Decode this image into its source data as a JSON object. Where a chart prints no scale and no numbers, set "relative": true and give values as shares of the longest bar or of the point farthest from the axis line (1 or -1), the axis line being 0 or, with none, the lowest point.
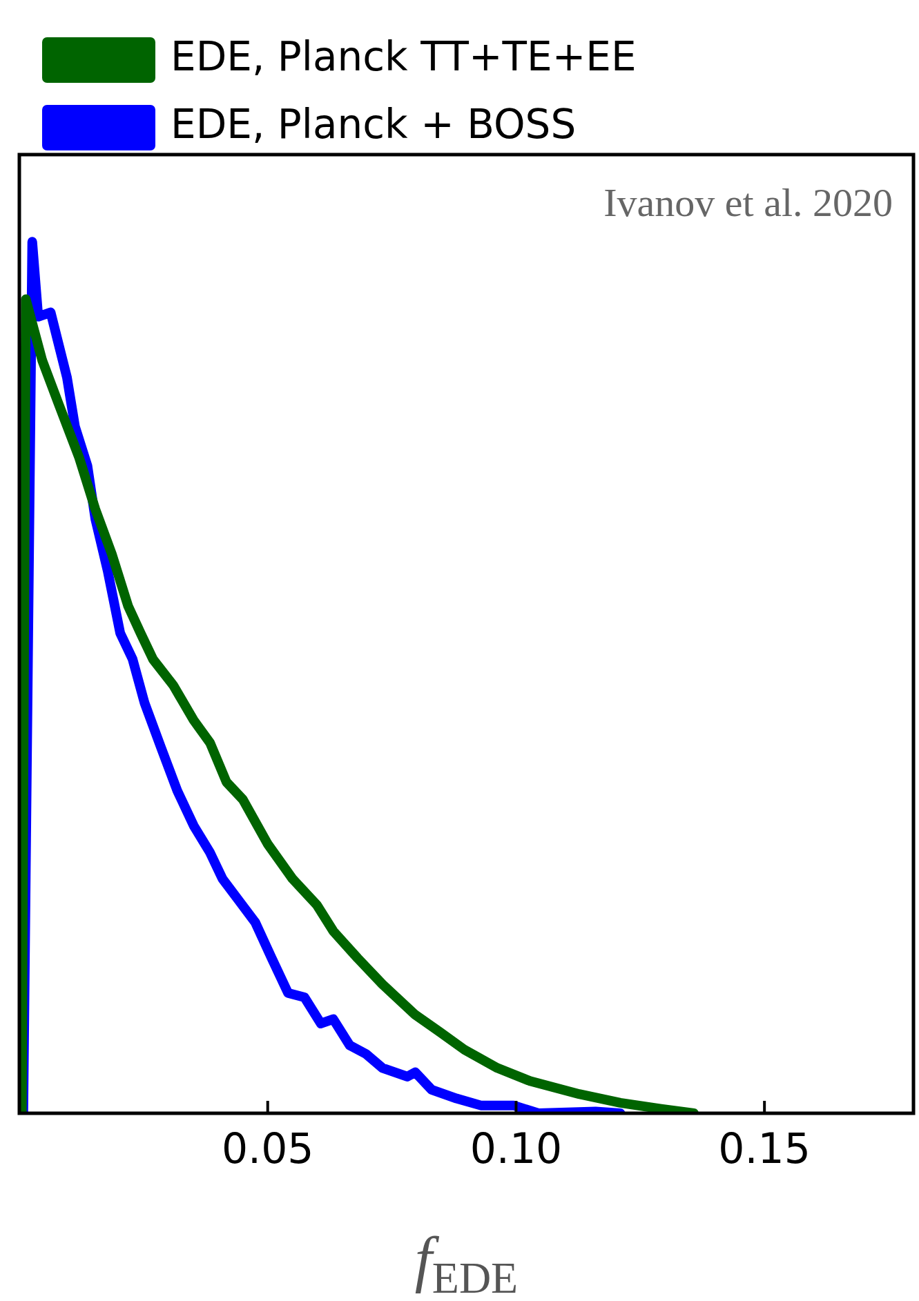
{
  "chart_data": {
    "type": "line",
    "relative": true,
    "xlabel": "f$_{EDE}$",
    "legend": "top left",
    "grid": false,
    "marker": "none",
    "line_style": "solid",
    "xlim": [
      0,
      0.18
    ],
    "xticks": [
      0.05,
      {
        "value": 0.1,
        "label": "0.10"
      },
      0.15
    ],
    "annotations": [
      "Ivanov et al. 2020"
    ],
    "series": [
      {
        "name": "EDE, Planck TT+TE+EE",
        "color": "#006400",
        "x": [
          0.0005,
          0.0013,
          0.0046,
          0.0079,
          0.012,
          0.0153,
          0.0186,
          0.0219,
          0.0244,
          0.0269,
          0.031,
          0.0351,
          0.0384,
          0.0417,
          0.045,
          0.05,
          0.055,
          0.0599,
          0.0632,
          0.0681,
          0.0731,
          0.0797,
          0.0847,
          0.0896,
          0.0962,
          0.1028,
          0.1127,
          0.121,
          0.1292,
          0.1358
        ],
        "values": [
          0,
          0.934,
          0.864,
          0.814,
          0.753,
          0.693,
          0.642,
          0.582,
          0.551,
          0.521,
          0.491,
          0.451,
          0.425,
          0.38,
          0.36,
          0.309,
          0.269,
          0.239,
          0.209,
          0.178,
          0.148,
          0.113,
          0.093,
          0.073,
          0.052,
          0.037,
          0.022,
          0.012,
          0.005,
          0
        ]
      },
      {
        "name": "EDE, Planck + BOSS",
        "color": "#0000ff",
        "x": [
          0.0008,
          0.0026,
          0.0038,
          0.0063,
          0.0096,
          0.0112,
          0.0137,
          0.0153,
          0.0178,
          0.0203,
          0.0228,
          0.0252,
          0.0285,
          0.0318,
          0.0351,
          0.0384,
          0.0409,
          0.0442,
          0.0475,
          0.0508,
          0.0541,
          0.0574,
          0.0607,
          0.0632,
          0.0665,
          0.0698,
          0.0731,
          0.0781,
          0.0797,
          0.083,
          0.088,
          0.0929,
          0.0995,
          0.1045,
          0.116,
          0.121
        ],
        "values": [
          0,
          1,
          0.914,
          0.919,
          0.844,
          0.788,
          0.743,
          0.682,
          0.622,
          0.551,
          0.521,
          0.471,
          0.42,
          0.37,
          0.33,
          0.299,
          0.269,
          0.244,
          0.219,
          0.178,
          0.138,
          0.133,
          0.103,
          0.108,
          0.078,
          0.068,
          0.052,
          0.042,
          0.047,
          0.027,
          0.017,
          0.009,
          0.009,
          0,
          0.002,
          0
        ]
      }
    ]
  }
}
